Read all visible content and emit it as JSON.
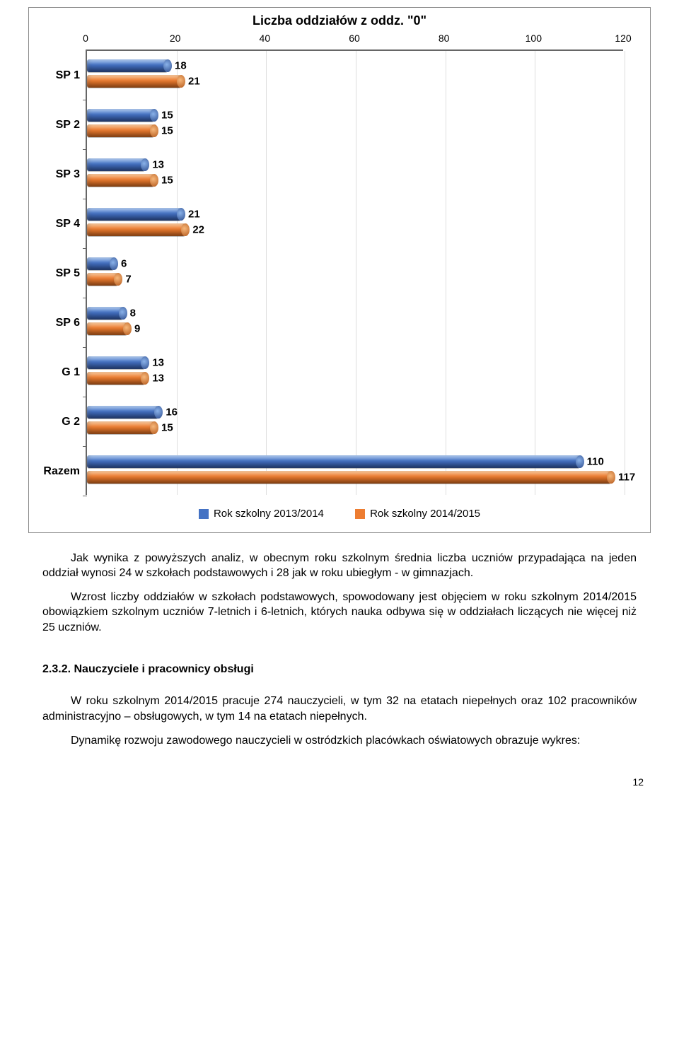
{
  "chart": {
    "title": "Liczba oddziałów z oddz. \"0\"",
    "x_ticks": [
      0,
      20,
      40,
      60,
      80,
      100,
      120
    ],
    "x_max": 120,
    "categories": [
      "SP 1",
      "SP 2",
      "SP 3",
      "SP 4",
      "SP 5",
      "SP 6",
      "G 1",
      "G 2",
      "Razem"
    ],
    "series_a_label": "Rok szkolny 2013/2014",
    "series_b_label": "Rok szkolny 2014/2015",
    "series_a": [
      18,
      15,
      13,
      21,
      6,
      8,
      13,
      16,
      110
    ],
    "series_b": [
      21,
      15,
      15,
      22,
      7,
      9,
      13,
      15,
      117
    ],
    "color_a": "#4472c4",
    "color_b": "#ed7d31",
    "grid_color": "#dddddd",
    "border_color": "#888888",
    "label_font_size": 15,
    "title_font_size": 18
  },
  "para1": "Jak wynika z powyższych analiz, w obecnym roku szkolnym średnia liczba uczniów przypadająca na jeden oddział wynosi 24 w szkołach podstawowych i 28 jak w roku ubiegłym - w gimnazjach.",
  "para2": "Wzrost liczby oddziałów w szkołach podstawowych, spowodowany jest objęciem w roku szkolnym 2014/2015 obowiązkiem szkolnym uczniów 7-letnich i 6-letnich, których nauka odbywa się w oddziałach liczących nie więcej niż 25 uczniów.",
  "section_number": "2.3.2.",
  "section_title": "Nauczyciele i pracownicy obsługi",
  "para3": "W roku szkolnym 2014/2015 pracuje 274 nauczycieli, w tym 32 na etatach niepełnych oraz 102 pracowników administracyjno – obsługowych, w tym 14 na etatach niepełnych.",
  "para4": "Dynamikę rozwoju zawodowego nauczycieli w ostródzkich placówkach oświatowych obrazuje wykres:",
  "page_number": "12"
}
